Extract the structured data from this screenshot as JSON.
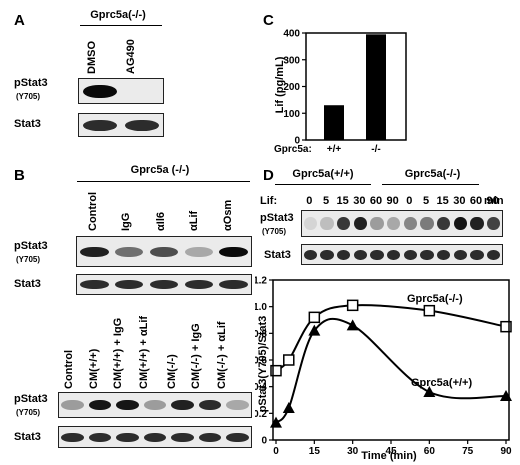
{
  "panel_a": {
    "letter": "A",
    "header": "Gprc5a(-/-)",
    "lanes": [
      "DMSO",
      "AG490"
    ],
    "row1_label": "pStat3",
    "row1_sub": "(Y705)",
    "row2_label": "Stat3"
  },
  "panel_b": {
    "letter": "B",
    "header": "Gprc5a (-/-)",
    "top_lanes": [
      "Control",
      "IgG",
      "αIl6",
      "αLif",
      "αOsm"
    ],
    "bottom_lanes": [
      "Control",
      "CM(+/+)",
      "CM(+/+) + IgG",
      "CM(+/+) + αLif",
      "CM(-/-)",
      "CM(-/-) + IgG",
      "CM(-/-) + αLif"
    ],
    "row1_label": "pStat3",
    "row1_sub": "(Y705)",
    "row2_label": "Stat3"
  },
  "panel_c": {
    "letter": "C",
    "ylabel": "Lif (pg/mL)",
    "genotype_label": "Gprc5a:",
    "category_labels": [
      "+/+",
      "-/-"
    ],
    "ticks": [
      "0",
      "100",
      "200",
      "300",
      "400"
    ]
  },
  "panel_d": {
    "letter": "D",
    "group_headers": [
      "Gprc5a(+/+)",
      "Gprc5a(-/-)"
    ],
    "lif_label": "Lif:",
    "min_label": "min",
    "time_lanes": [
      "0",
      "5",
      "15",
      "30",
      "60",
      "90",
      "0",
      "5",
      "15",
      "30",
      "60",
      "90"
    ],
    "row1_label": "pStat3",
    "row1_sub": "(Y705)",
    "row2_label": "Stat3",
    "ylabel": "pStat3(Y705)/Stat3",
    "xlabel": "Time (min)",
    "x_ticks": [
      "0",
      "15",
      "30",
      "45",
      "60",
      "75",
      "90"
    ],
    "y_ticks": [
      "0",
      "0.2",
      "0.4",
      "0.6",
      "0.8",
      "1.0",
      "1.2"
    ],
    "series_labels": [
      "Gprc5a(-/-)",
      "Gprc5a(+/+)"
    ]
  },
  "chart_data": [
    {
      "type": "bar",
      "categories": [
        "+/+",
        "-/-"
      ],
      "values": [
        130,
        395
      ],
      "title": "",
      "xlabel": "Gprc5a:",
      "ylabel": "Lif (pg/mL)",
      "ylim": [
        0,
        400
      ],
      "color": "#000000"
    },
    {
      "type": "line",
      "title": "",
      "xlabel": "Time (min)",
      "ylabel": "pStat3(Y705)/Stat3",
      "xlim": [
        0,
        90
      ],
      "ylim": [
        0,
        1.2
      ],
      "legend": "inline-labels",
      "series": [
        {
          "name": "Gprc5a(-/-)",
          "marker": "open-square",
          "x": [
            0,
            5,
            15,
            30,
            60,
            90
          ],
          "y": [
            0.52,
            0.6,
            0.92,
            1.01,
            0.97,
            0.85
          ]
        },
        {
          "name": "Gprc5a(+/+)",
          "marker": "filled-triangle",
          "x": [
            0,
            5,
            15,
            30,
            60,
            90
          ],
          "y": [
            0.13,
            0.24,
            0.82,
            0.86,
            0.36,
            0.33
          ]
        }
      ]
    }
  ],
  "bands": {
    "a_p": [
      1.0,
      0.0
    ],
    "a_t": [
      0.85,
      0.85
    ],
    "b_top_p": [
      0.9,
      0.55,
      0.7,
      0.3,
      1.0
    ],
    "b_top_t": [
      0.85,
      0.85,
      0.85,
      0.85,
      0.85
    ],
    "b_bot_p": [
      0.35,
      0.95,
      0.95,
      0.35,
      0.9,
      0.85,
      0.3
    ],
    "b_bot_t": [
      0.85,
      0.85,
      0.85,
      0.85,
      0.85,
      0.85,
      0.85
    ],
    "d_p": [
      0.1,
      0.2,
      0.8,
      0.9,
      0.35,
      0.3,
      0.45,
      0.5,
      0.8,
      0.95,
      0.9,
      0.75
    ],
    "d_t": [
      0.85,
      0.85,
      0.85,
      0.85,
      0.85,
      0.85,
      0.85,
      0.85,
      0.85,
      0.85,
      0.85,
      0.85
    ]
  }
}
